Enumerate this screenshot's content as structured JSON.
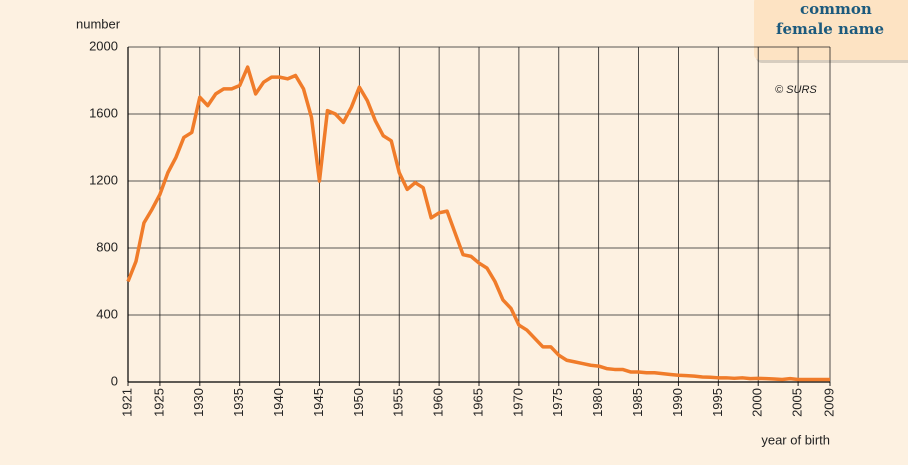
{
  "chart_data": {
    "type": "line",
    "title_lines": [
      "common",
      "female name"
    ],
    "annotation": "© SURS",
    "ylabel": "number",
    "xlabel": "year of birth",
    "x": [
      1921,
      1922,
      1923,
      1924,
      1925,
      1926,
      1927,
      1928,
      1929,
      1930,
      1931,
      1932,
      1933,
      1934,
      1935,
      1936,
      1937,
      1938,
      1939,
      1940,
      1941,
      1942,
      1943,
      1944,
      1945,
      1946,
      1947,
      1948,
      1949,
      1950,
      1951,
      1952,
      1953,
      1954,
      1955,
      1956,
      1957,
      1958,
      1959,
      1960,
      1961,
      1962,
      1963,
      1964,
      1965,
      1966,
      1967,
      1968,
      1969,
      1970,
      1971,
      1972,
      1973,
      1974,
      1975,
      1976,
      1977,
      1978,
      1979,
      1980,
      1981,
      1982,
      1983,
      1984,
      1985,
      1986,
      1987,
      1988,
      1989,
      1990,
      1991,
      1992,
      1993,
      1994,
      1995,
      1996,
      1997,
      1998,
      1999,
      2000,
      2001,
      2002,
      2003,
      2004,
      2005,
      2006,
      2007,
      2008,
      2009
    ],
    "series": [
      {
        "color": "#f07c2a",
        "values": [
          600,
          720,
          950,
          1030,
          1120,
          1250,
          1340,
          1460,
          1490,
          1700,
          1650,
          1720,
          1750,
          1750,
          1770,
          1880,
          1720,
          1790,
          1820,
          1820,
          1810,
          1830,
          1750,
          1580,
          1200,
          1620,
          1600,
          1550,
          1640,
          1760,
          1680,
          1560,
          1470,
          1440,
          1250,
          1150,
          1190,
          1160,
          980,
          1010,
          1020,
          890,
          760,
          750,
          710,
          680,
          600,
          490,
          440,
          340,
          310,
          260,
          210,
          210,
          160,
          130,
          120,
          110,
          100,
          95,
          80,
          75,
          75,
          60,
          60,
          55,
          55,
          50,
          45,
          40,
          38,
          35,
          30,
          28,
          25,
          25,
          22,
          25,
          20,
          22,
          20,
          18,
          15,
          20,
          15,
          15,
          15,
          15,
          15
        ]
      }
    ],
    "xlim": [
      1921,
      2009
    ],
    "xticks": [
      1921,
      1925,
      1930,
      1935,
      1940,
      1945,
      1950,
      1955,
      1960,
      1965,
      1970,
      1975,
      1980,
      1985,
      1990,
      1995,
      2000,
      2005,
      2009
    ],
    "ylim": [
      0,
      2000
    ],
    "yticks": [
      0,
      400,
      800,
      1200,
      1600,
      2000
    ],
    "grid": true
  }
}
